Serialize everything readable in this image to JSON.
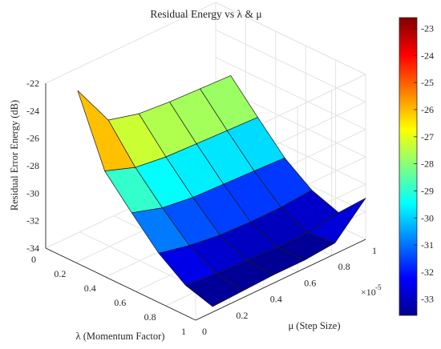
{
  "chart_data": {
    "type": "surface",
    "title": "Residual Energy vs λ & μ",
    "xlabel": "λ (Momentum Factor)",
    "ylabel": "μ (Step Size)",
    "zlabel": "Residual Error Energy (dB)",
    "y_exponent_label": "×10",
    "y_exponent_power": "-5",
    "xlim": [
      0,
      1
    ],
    "ylim": [
      0,
      1
    ],
    "zlim": [
      -34,
      -22
    ],
    "x_ticks": [
      "0",
      "0.2",
      "0.4",
      "0.6",
      "0.8",
      "1"
    ],
    "y_ticks": [
      "0",
      "0.2",
      "0.4",
      "0.6",
      "0.8",
      "1"
    ],
    "z_ticks": [
      "-34",
      "-32",
      "-30",
      "-28",
      "-26",
      "-24",
      "-22"
    ],
    "colorbar": {
      "colormap": "jet",
      "range": [
        -33.6,
        -22.6
      ],
      "ticks": [
        "-23",
        "-24",
        "-25",
        "-26",
        "-27",
        "-28",
        "-29",
        "-30",
        "-31",
        "-32",
        "-33"
      ]
    },
    "x": [
      0.1,
      0.28,
      0.46,
      0.64,
      0.82,
      1.0
    ],
    "y": [
      0.1,
      0.28,
      0.46,
      0.64,
      0.82,
      1.0
    ],
    "z": [
      [
        -22.6,
        -25.8,
        -26.4,
        -26.6,
        -26.7,
        -26.8
      ],
      [
        -27.5,
        -28.3,
        -28.6,
        -28.7,
        -28.8,
        -28.9
      ],
      [
        -29.6,
        -30.3,
        -30.6,
        -30.7,
        -30.8,
        -30.9
      ],
      [
        -31.6,
        -32.1,
        -32.4,
        -32.5,
        -32.5,
        -32.3
      ],
      [
        -33.0,
        -33.2,
        -33.3,
        -33.4,
        -33.4,
        -33.0
      ],
      [
        -33.6,
        -33.5,
        -33.4,
        -33.4,
        -33.2,
        -31.0
      ]
    ]
  }
}
